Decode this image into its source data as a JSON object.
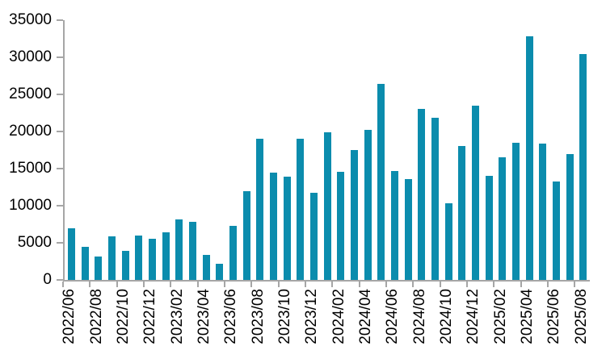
{
  "chart_data": {
    "type": "bar",
    "title": "",
    "xlabel": "",
    "ylabel": "",
    "legend": "none",
    "grid": false,
    "ylim": [
      0,
      35000
    ],
    "y_tick_step": 5000,
    "y_tick_labels": [
      "35000",
      "30000",
      "25000",
      "20000",
      "15000",
      "10000",
      "5000",
      "0"
    ],
    "x_tick_labels": [
      "2022/06",
      "2022/08",
      "2022/10",
      "2022/12",
      "2023/02",
      "2023/04",
      "2023/06",
      "2023/08",
      "2023/10",
      "2023/12",
      "2024/02",
      "2024/04",
      "2024/06",
      "2024/08",
      "2024/10",
      "2024/12",
      "2025/02",
      "2025/04",
      "2025/06",
      "2025/08"
    ],
    "categories": [
      "2022/06",
      "2022/07",
      "2022/08",
      "2022/09",
      "2022/10",
      "2022/11",
      "2022/12",
      "2023/01",
      "2023/02",
      "2023/03",
      "2023/04",
      "2023/05",
      "2023/06",
      "2023/07",
      "2023/08",
      "2023/09",
      "2023/10",
      "2023/11",
      "2023/12",
      "2024/01",
      "2024/02",
      "2024/03",
      "2024/04",
      "2024/05",
      "2024/06",
      "2024/07",
      "2024/08",
      "2024/09",
      "2024/10",
      "2024/11",
      "2024/12",
      "2025/01",
      "2025/02",
      "2025/03",
      "2025/04",
      "2025/05",
      "2025/06",
      "2025/07",
      "2025/08"
    ],
    "values": [
      7000,
      4500,
      3200,
      5900,
      3900,
      6000,
      5600,
      6400,
      8200,
      7800,
      3400,
      2200,
      7300,
      12000,
      19000,
      14500,
      13900,
      19000,
      11700,
      19900,
      14600,
      17500,
      20200,
      26400,
      14700,
      13600,
      23000,
      21800,
      10300,
      18100,
      23500,
      14000,
      16500,
      18500,
      32800,
      18400,
      13300,
      17000,
      30400
    ],
    "colors": {
      "bar": "#0b8cad",
      "axis": "#a6a6a6",
      "text": "#000000",
      "background": "#ffffff"
    }
  }
}
